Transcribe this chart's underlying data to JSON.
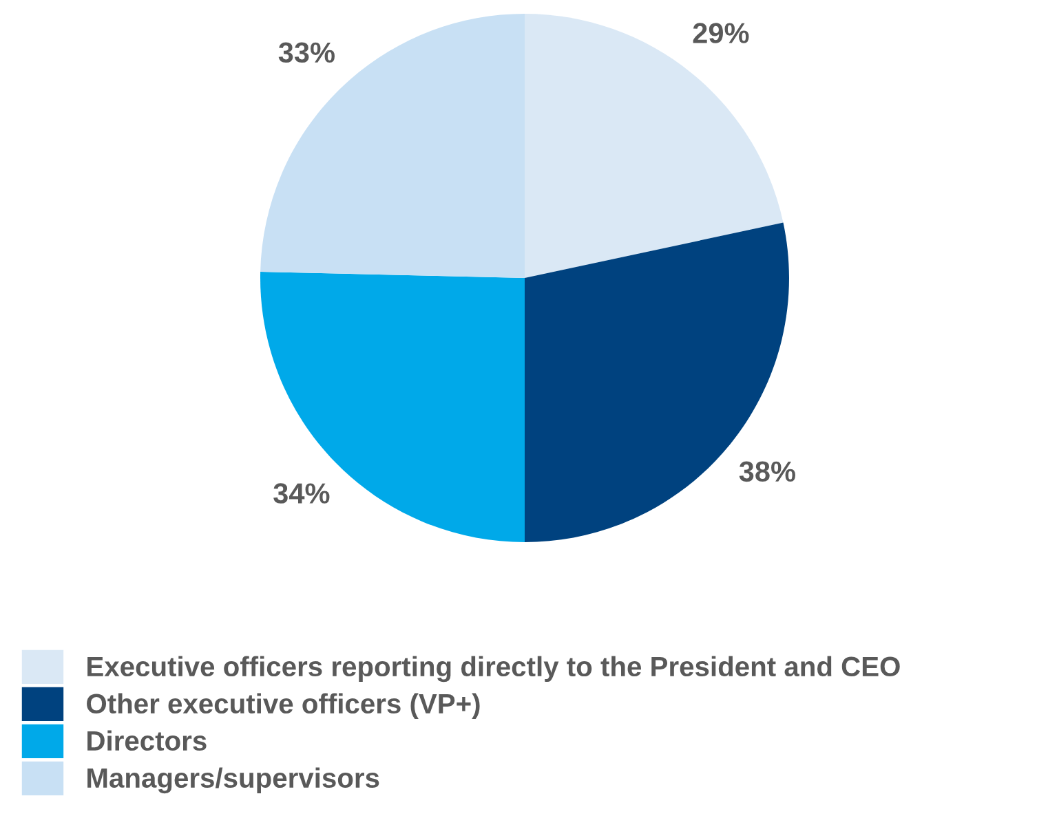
{
  "chart_data": {
    "type": "pie",
    "categories": [
      "Executive officers reporting directly to the President and CEO",
      "Other executive officers (VP+)",
      "Directors",
      "Managers/supervisors"
    ],
    "values": [
      29,
      38,
      34,
      33
    ],
    "value_labels": [
      "29%",
      "38%",
      "34%",
      "33%"
    ],
    "colors": [
      "#dae8f5",
      "#00427f",
      "#00a9e9",
      "#c8e0f4"
    ],
    "legend": "bottom left"
  }
}
